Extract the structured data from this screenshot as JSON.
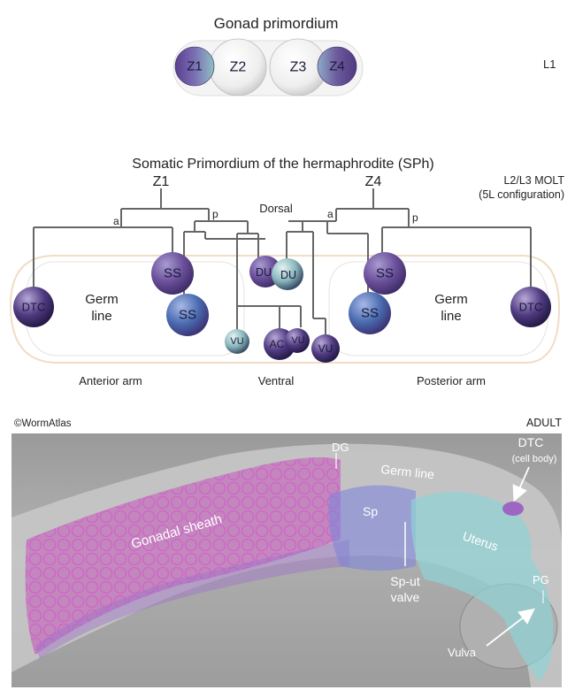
{
  "top": {
    "title": "Gonad primordium",
    "stage": "L1",
    "cells": [
      "Z1",
      "Z2",
      "Z3",
      "Z4"
    ]
  },
  "middle": {
    "title": "Somatic Primordium of the hermaphrodite (SPh)",
    "stage_line1": "L2/L3 MOLT",
    "stage_line2": "(5L configuration)",
    "z1": "Z1",
    "z4": "Z4",
    "branch_a": "a",
    "branch_p": "p",
    "dorsal": "Dorsal",
    "ventral": "Ventral",
    "anterior_arm": "Anterior arm",
    "posterior_arm": "Posterior arm",
    "germ_line_1": "Germ",
    "germ_line_2": "line",
    "cells": {
      "dtc": "DTC",
      "ss": "SS",
      "du": "DU",
      "vu": "VU",
      "ac": "AC"
    }
  },
  "bottom": {
    "copyright": "©WormAtlas",
    "stage": "ADULT",
    "dg": "DG",
    "germ_line": "Germ line",
    "dtc": "DTC",
    "dtc_sub": "(cell body)",
    "sp": "Sp",
    "gonadal_sheath": "Gonadal sheath",
    "uterus": "Uterus",
    "sp_ut_1": "Sp-ut",
    "sp_ut_2": "valve",
    "pg": "PG",
    "vulva": "Vulva"
  },
  "colors": {
    "cell_purple": "#6a4f9a",
    "cell_blue": "#4a6cb0",
    "cell_teal": "#5fa6a8",
    "sheath_pink": "#c43fb8",
    "uterus_cyan": "#8fd3d6",
    "sp_blue": "#7f86d8"
  }
}
